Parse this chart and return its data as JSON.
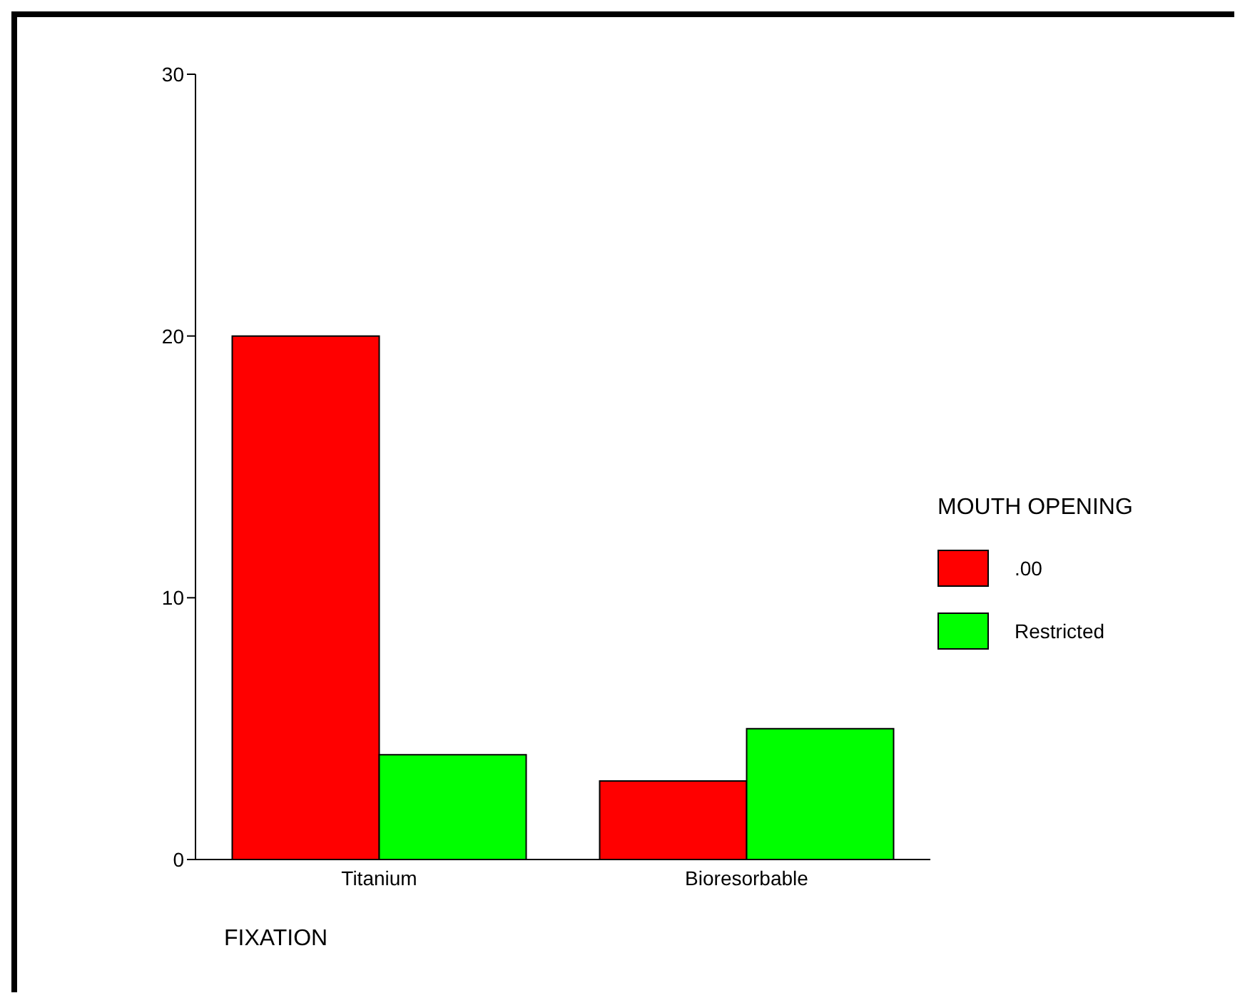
{
  "chart_data": {
    "type": "bar",
    "xlabel": "FIXATION",
    "legend_title": "MOUTH OPENING",
    "categories": [
      "Titanium",
      "Bioresorbable"
    ],
    "series": [
      {
        "name": ".00",
        "color": "#ff0000",
        "values": [
          20,
          3
        ]
      },
      {
        "name": "Restricted",
        "color": "#00ff00",
        "values": [
          4,
          5
        ]
      }
    ],
    "ylim": [
      0,
      30
    ],
    "yticks": [
      0,
      10,
      20,
      30
    ],
    "grid": false,
    "legend": "right"
  }
}
